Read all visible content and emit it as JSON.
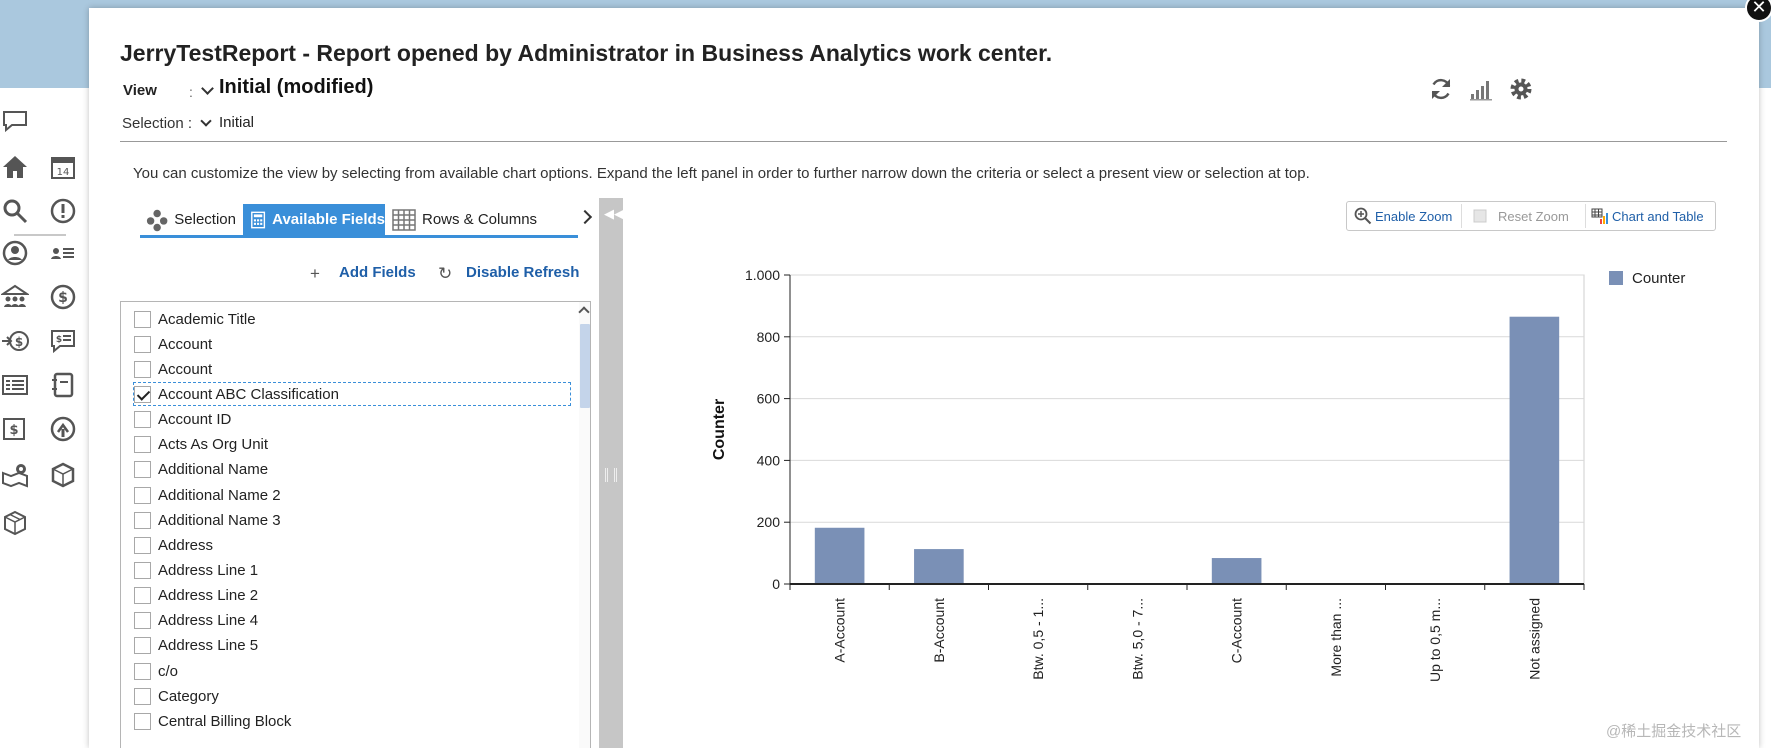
{
  "modal": {
    "title": "JerryTestReport - Report opened by Administrator in Business Analytics work center.",
    "view_label": "View",
    "view_colon": ":",
    "view_value": "Initial (modified)",
    "selection_label": "Selection :",
    "selection_value": "Initial",
    "close_label": "✕",
    "toolbar_icons": [
      "refresh-icon",
      "bar-chart-icon",
      "gear-icon"
    ]
  },
  "info_text": "You can customize the view by selecting from available chart options. Expand the left panel in order to further narrow down the criteria or select a present view or selection at top.",
  "tabs": [
    {
      "label": "Selection",
      "icon": "selection-icon",
      "active": false
    },
    {
      "label": "Available Fields",
      "icon": "calculator-icon",
      "active": true
    },
    {
      "label": "Rows & Columns",
      "icon": "grid-icon",
      "active": false
    }
  ],
  "actions": {
    "add_fields_icon": "+",
    "add_fields": "Add Fields",
    "disable_refresh_icon": "↻",
    "disable_refresh": "Disable Refresh"
  },
  "fields": [
    {
      "label": "Academic Title",
      "checked": false
    },
    {
      "label": "Account",
      "checked": false
    },
    {
      "label": "Account",
      "checked": false
    },
    {
      "label": "Account ABC Classification",
      "checked": true
    },
    {
      "label": "Account ID",
      "checked": false
    },
    {
      "label": "Acts As Org Unit",
      "checked": false
    },
    {
      "label": "Additional Name",
      "checked": false
    },
    {
      "label": "Additional Name 2",
      "checked": false
    },
    {
      "label": "Additional Name 3",
      "checked": false
    },
    {
      "label": "Address",
      "checked": false
    },
    {
      "label": "Address Line 1",
      "checked": false
    },
    {
      "label": "Address Line 2",
      "checked": false
    },
    {
      "label": "Address Line 4",
      "checked": false
    },
    {
      "label": "Address Line 5",
      "checked": false
    },
    {
      "label": "c/o",
      "checked": false
    },
    {
      "label": "Category",
      "checked": false
    },
    {
      "label": "Central Billing Block",
      "checked": false
    }
  ],
  "zoom_controls": {
    "enable_zoom": "Enable Zoom",
    "reset_zoom": "Reset Zoom",
    "chart_and_table": "Chart and Table"
  },
  "colors": {
    "accent": "#3a8fd9",
    "link": "#1f5fa8",
    "bar": "#7a90b6",
    "header_band": "#aac8de"
  },
  "chart_data": {
    "type": "bar",
    "categories": [
      "A-Account",
      "B-Account",
      "Btw. 0,5 - 1...",
      "Btw. 5,0 - 7...",
      "C-Account",
      "More than ...",
      "Up to 0,5 m...",
      "Not assigned"
    ],
    "series": [
      {
        "name": "Counter",
        "values": [
          182,
          113,
          0,
          0,
          84,
          0,
          0,
          865
        ]
      }
    ],
    "ylabel": "Counter",
    "xlabel": "",
    "ylim": [
      0,
      1000
    ],
    "yticks": [
      0,
      200,
      400,
      600,
      800,
      1000
    ],
    "ytick_labels": [
      "0",
      "200",
      "400",
      "600",
      "800",
      "1.000"
    ],
    "legend": "top-right",
    "grid": true
  },
  "watermark": "@稀土掘金技术社区",
  "nav_icons": [
    "chat-icon",
    "home-icon",
    "calendar-icon",
    "search-icon",
    "alert-icon",
    "user-icon",
    "user-list-icon",
    "team-icon",
    "dollar-icon",
    "money-transfer-icon",
    "price-tag-icon",
    "list-icon",
    "notebook-icon",
    "invoice-icon",
    "refresh-arrows-icon",
    "map-pin-icon",
    "box-icon",
    "package-icon"
  ]
}
